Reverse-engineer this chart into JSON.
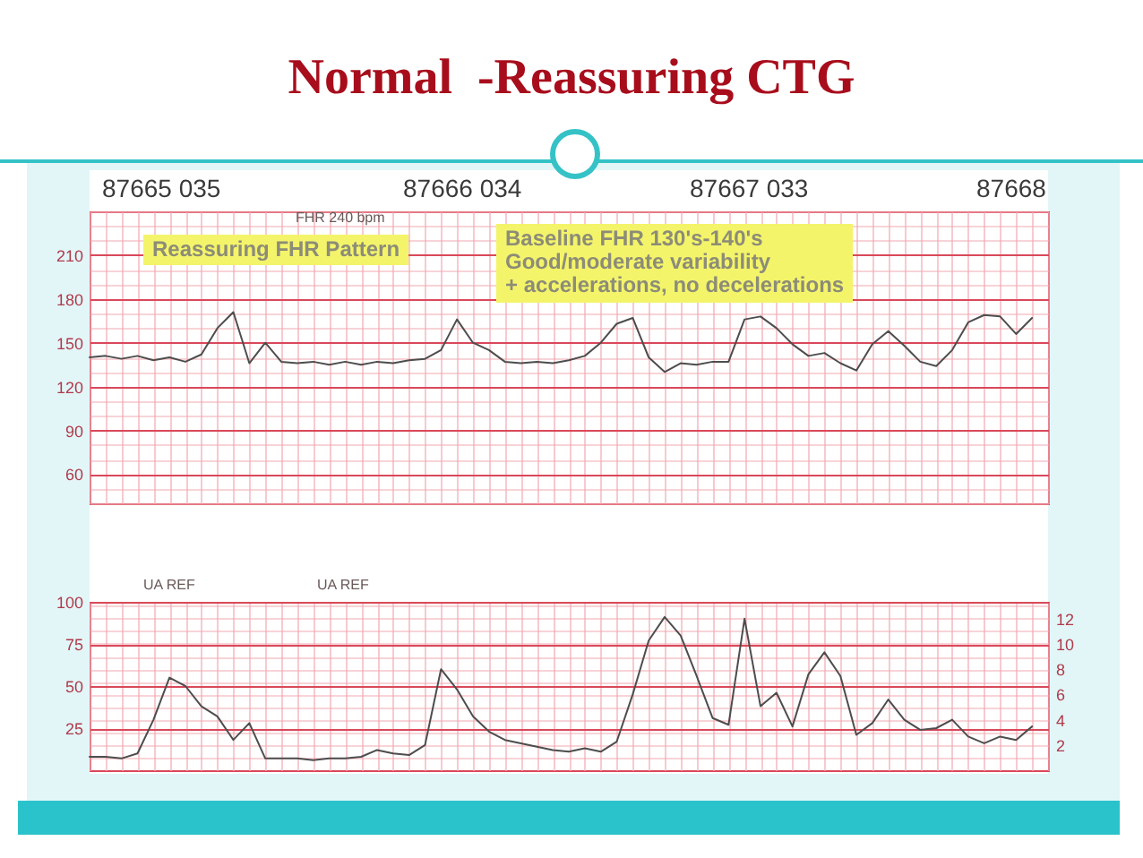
{
  "chart_data": [
    {
      "type": "line",
      "title": "Normal  -Reassuring CTG",
      "categories": [
        null,
        null,
        null,
        null,
        null,
        null,
        null,
        null,
        null,
        null,
        null,
        null,
        null,
        null,
        null,
        null,
        null,
        null,
        null,
        null,
        null,
        null,
        null,
        null,
        null,
        null,
        null,
        null,
        null,
        null,
        null,
        null,
        null,
        null,
        null,
        null,
        null,
        null,
        null,
        null,
        null,
        null,
        null,
        null,
        null,
        null,
        null,
        null,
        null,
        null,
        null,
        null,
        null,
        null,
        null,
        null,
        null,
        null,
        null,
        null,
        null
      ],
      "color": "#4d4d4d",
      "values": [
        140,
        141,
        139,
        141,
        138,
        140,
        137,
        142,
        160,
        171,
        136,
        150,
        137,
        136,
        137,
        135,
        137,
        135,
        137,
        136,
        138,
        139,
        145,
        166,
        150,
        145,
        137,
        136,
        137,
        136,
        138,
        141,
        150,
        163,
        167,
        140,
        130,
        136,
        135,
        137,
        137,
        166,
        168,
        160,
        149,
        141,
        143,
        136,
        131,
        149,
        158,
        148,
        137,
        134,
        145,
        164,
        169,
        168,
        156,
        167,
        null
      ],
      "ylim": [
        40,
        240
      ],
      "yticks": [
        {
          "value": 40,
          "label": null
        },
        {
          "value": 50,
          "label": null
        },
        60,
        {
          "value": 70,
          "label": null
        },
        {
          "value": 80,
          "label": null
        },
        90,
        {
          "value": 100,
          "label": null
        },
        {
          "value": 110,
          "label": null
        },
        120,
        {
          "value": 130,
          "label": null
        },
        {
          "value": 140,
          "label": null
        },
        150,
        {
          "value": 160,
          "label": null
        },
        {
          "value": 170,
          "label": null
        },
        180,
        {
          "value": 190,
          "label": null
        },
        {
          "value": 200,
          "label": null
        },
        210,
        {
          "value": 220,
          "label": null
        },
        {
          "value": 230,
          "label": null
        },
        {
          "value": 240,
          "label": null
        }
      ],
      "grid": true,
      "tick_labels": "y",
      "annotations": [
        "87665 035",
        "87666 034",
        "87667 033",
        "87668",
        "FHR 240 bpm",
        "Reassuring FHR Pattern",
        "Baseline FHR 130's-140's\nGood/moderate variability\n+ accelerations, no decelerations"
      ]
    },
    {
      "type": "line",
      "categories": [
        null,
        null,
        null,
        null,
        null,
        null,
        null,
        null,
        null,
        null,
        null,
        null,
        null,
        null,
        null,
        null,
        null,
        null,
        null,
        null,
        null,
        null,
        null,
        null,
        null,
        null,
        null,
        null,
        null,
        null,
        null,
        null,
        null,
        null,
        null,
        null,
        null,
        null,
        null,
        null,
        null,
        null,
        null,
        null,
        null,
        null,
        null,
        null,
        null,
        null,
        null,
        null,
        null,
        null,
        null,
        null,
        null,
        null,
        null,
        null,
        null
      ],
      "color": "#4d4d4d",
      "values": [
        8,
        8,
        7,
        10,
        30,
        55,
        50,
        38,
        32,
        18,
        28,
        7,
        7,
        7,
        6,
        7,
        7,
        8,
        12,
        10,
        9,
        15,
        60,
        48,
        32,
        23,
        18,
        16,
        14,
        12,
        11,
        13,
        11,
        17,
        45,
        77,
        91,
        80,
        56,
        31,
        27,
        90,
        38,
        46,
        26,
        57,
        70,
        56,
        21,
        28,
        42,
        30,
        24,
        25,
        30,
        20,
        16,
        20,
        18,
        26,
        null
      ],
      "ylim": [
        0,
        100
      ],
      "yticks": [
        25,
        50,
        75,
        100
      ],
      "y2lim": [
        0,
        13.33
      ],
      "y2ticks": [
        {
          "value": 1,
          "label": null
        },
        2,
        {
          "value": 3,
          "label": null
        },
        4,
        {
          "value": 5,
          "label": null
        },
        6,
        {
          "value": 7,
          "label": null
        },
        8,
        {
          "value": 9,
          "label": null
        },
        10,
        {
          "value": 11,
          "label": null
        },
        12,
        {
          "value": 13,
          "label": null
        }
      ],
      "grid": true,
      "tick_labels": "y",
      "annotations": [
        "UA REF",
        "UA REF"
      ]
    }
  ]
}
